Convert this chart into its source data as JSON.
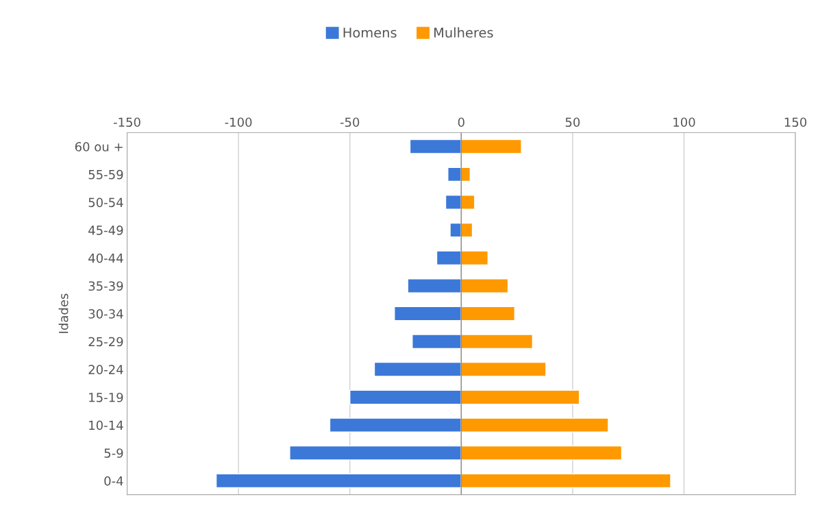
{
  "chart_data": {
    "type": "bar",
    "orientation": "horizontal",
    "stacked": true,
    "ylabel": "Idades",
    "categories": [
      "60 ou +",
      "55-59",
      "50-54",
      "45-49",
      "40-44",
      "35-39",
      "30-34",
      "25-29",
      "20-24",
      "15-19",
      "10-14",
      "5-9",
      "0-4"
    ],
    "series": [
      {
        "name": "Homens",
        "color": "#3c78d8",
        "values": [
          -23,
          -6,
          -7,
          -5,
          -11,
          -24,
          -30,
          -22,
          -39,
          -50,
          -59,
          -77,
          -110
        ]
      },
      {
        "name": "Mulheres",
        "color": "#ff9900",
        "values": [
          27,
          4,
          6,
          5,
          12,
          21,
          24,
          32,
          38,
          53,
          66,
          72,
          94
        ]
      }
    ],
    "xlim": [
      -150,
      150
    ],
    "xticks": [
      -150,
      -100,
      -50,
      0,
      50,
      100,
      150
    ],
    "grid": "x",
    "legend": "top"
  }
}
